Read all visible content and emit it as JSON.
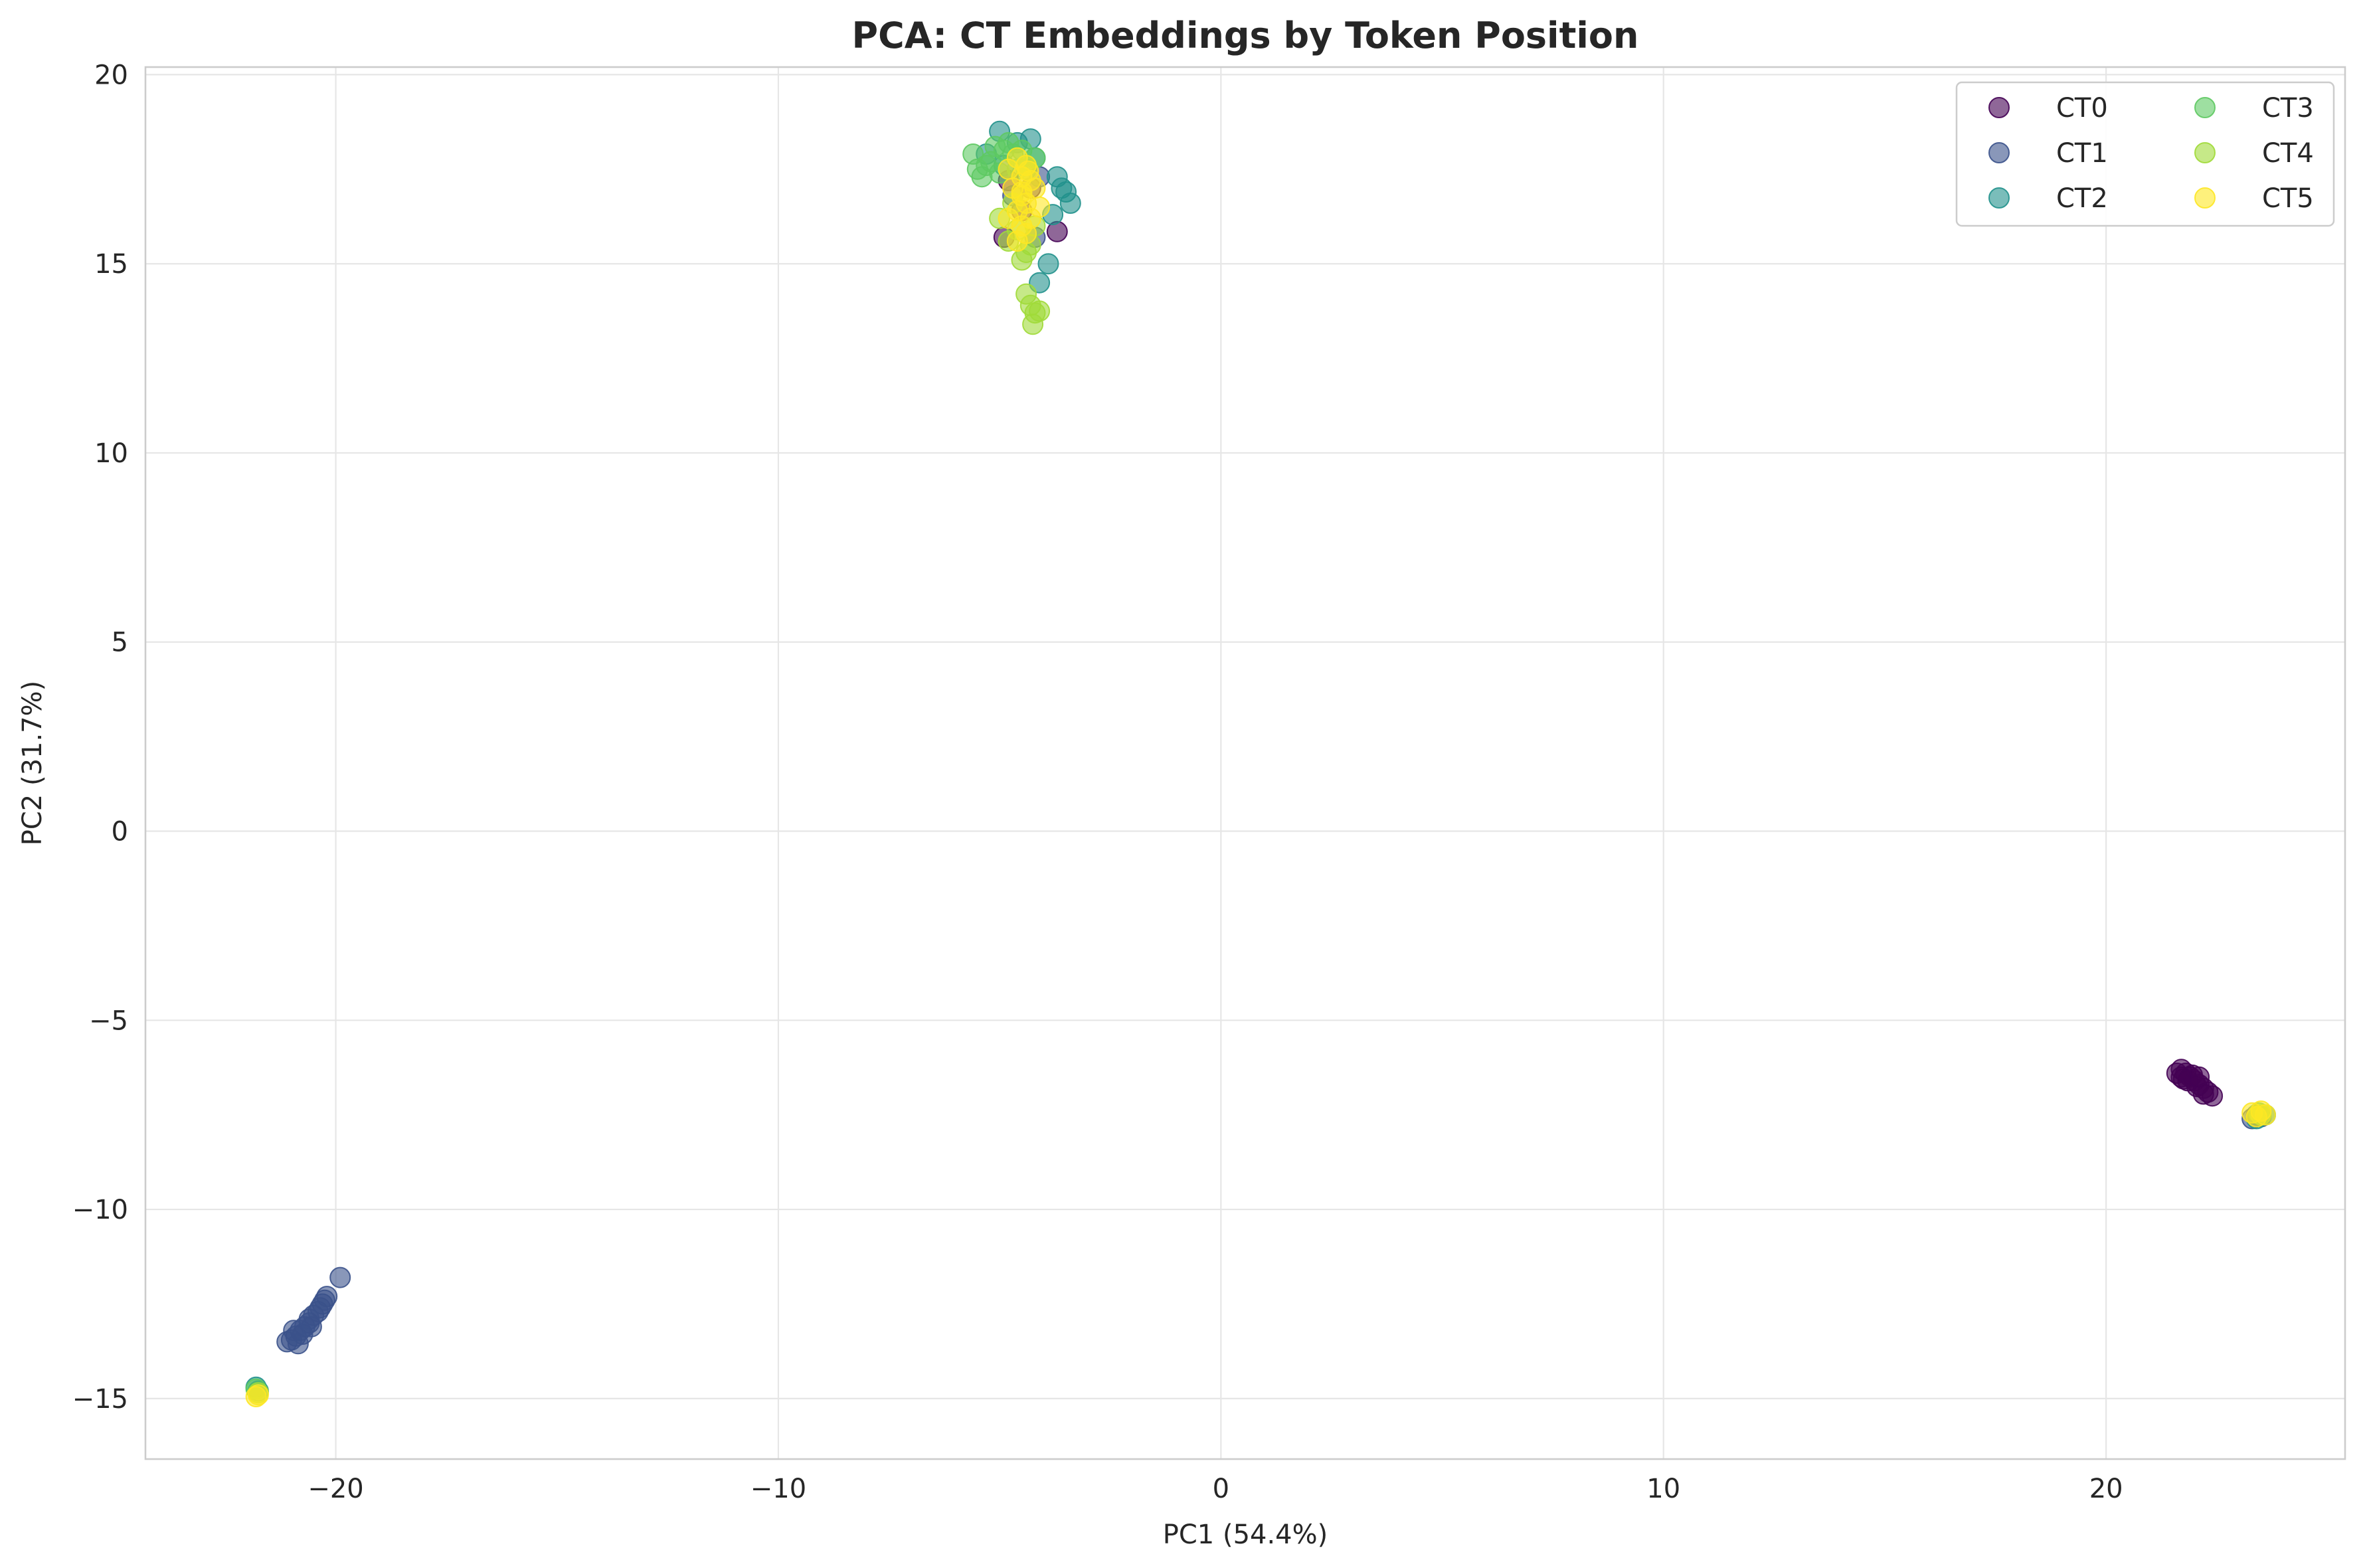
{
  "chart_data": {
    "type": "scatter",
    "title": "PCA: CT Embeddings by Token Position",
    "xlabel": "PC1 (54.4%)",
    "ylabel": "PC2 (31.7%)",
    "xlim": [
      -24.3,
      25.4
    ],
    "ylim": [
      -16.6,
      20.2
    ],
    "xticks": [
      -20,
      -10,
      0,
      10,
      20
    ],
    "yticks": [
      -15,
      -10,
      -5,
      0,
      5,
      10,
      15,
      20
    ],
    "xtick_labels": [
      "−20",
      "−10",
      "0",
      "10",
      "20"
    ],
    "ytick_labels": [
      "−15",
      "−10",
      "−5",
      "0",
      "5",
      "10",
      "15",
      "20"
    ],
    "grid": true,
    "legend": {
      "placement": "top-right",
      "columns": 2
    },
    "series": [
      {
        "name": "CT0",
        "color": "#440154",
        "points": [
          [
            21.7,
            -6.3
          ],
          [
            21.8,
            -6.4
          ],
          [
            21.9,
            -6.5
          ],
          [
            22.0,
            -6.6
          ],
          [
            22.1,
            -6.7
          ],
          [
            22.2,
            -6.8
          ],
          [
            22.3,
            -6.9
          ],
          [
            22.4,
            -7.0
          ],
          [
            21.6,
            -6.4
          ],
          [
            21.75,
            -6.55
          ],
          [
            21.95,
            -6.45
          ],
          [
            22.05,
            -6.75
          ],
          [
            22.2,
            -6.95
          ],
          [
            21.85,
            -6.6
          ],
          [
            22.1,
            -6.5
          ],
          [
            21.7,
            -6.5
          ],
          [
            -4.9,
            15.7
          ],
          [
            -3.7,
            15.85
          ],
          [
            -4.5,
            16.4
          ],
          [
            -4.8,
            17.2
          ],
          [
            -4.3,
            17.0
          ]
        ]
      },
      {
        "name": "CT1",
        "color": "#3b528b",
        "points": [
          [
            -19.9,
            -11.8
          ],
          [
            -20.2,
            -12.3
          ],
          [
            -20.3,
            -12.5
          ],
          [
            -20.4,
            -12.7
          ],
          [
            -20.5,
            -12.8
          ],
          [
            -20.6,
            -13.0
          ],
          [
            -20.7,
            -13.1
          ],
          [
            -20.8,
            -13.2
          ],
          [
            -20.9,
            -13.35
          ],
          [
            -21.0,
            -13.45
          ],
          [
            -21.1,
            -13.5
          ],
          [
            -20.85,
            -13.55
          ],
          [
            -20.75,
            -13.3
          ],
          [
            -20.55,
            -13.1
          ],
          [
            -20.35,
            -12.6
          ],
          [
            -20.25,
            -12.4
          ],
          [
            -20.6,
            -12.9
          ],
          [
            -20.95,
            -13.2
          ],
          [
            23.3,
            -7.6
          ],
          [
            23.5,
            -7.55
          ],
          [
            23.4,
            -7.5
          ],
          [
            -4.2,
            15.7
          ],
          [
            -4.7,
            16.8
          ],
          [
            -4.1,
            17.3
          ]
        ]
      },
      {
        "name": "CT2",
        "color": "#21918c",
        "points": [
          [
            -5.0,
            18.5
          ],
          [
            -4.3,
            18.3
          ],
          [
            -3.7,
            17.3
          ],
          [
            -3.5,
            16.9
          ],
          [
            -3.4,
            16.6
          ],
          [
            -3.9,
            15.0
          ],
          [
            -4.1,
            14.5
          ],
          [
            -5.3,
            17.9
          ],
          [
            -4.6,
            18.2
          ],
          [
            -4.2,
            17.8
          ],
          [
            -3.8,
            16.3
          ],
          [
            -4.9,
            17.6
          ],
          [
            -3.6,
            17.0
          ],
          [
            -4.4,
            17.5
          ],
          [
            -21.8,
            -14.7
          ],
          [
            -21.75,
            -14.8
          ],
          [
            23.4,
            -7.6
          ],
          [
            23.6,
            -7.5
          ]
        ]
      },
      {
        "name": "CT3",
        "color": "#5ec962",
        "points": [
          [
            -5.6,
            17.9
          ],
          [
            -5.3,
            17.6
          ],
          [
            -5.1,
            18.1
          ],
          [
            -4.8,
            18.2
          ],
          [
            -4.5,
            18.0
          ],
          [
            -4.2,
            17.8
          ],
          [
            -5.4,
            17.3
          ],
          [
            -5.0,
            17.4
          ],
          [
            -4.7,
            17.9
          ],
          [
            -4.4,
            17.6
          ],
          [
            -5.2,
            17.7
          ],
          [
            -4.9,
            18.0
          ],
          [
            -4.6,
            17.5
          ],
          [
            -5.5,
            17.5
          ],
          [
            -21.8,
            -14.75
          ],
          [
            23.45,
            -7.45
          ]
        ]
      },
      {
        "name": "CT4",
        "color": "#a0da39",
        "points": [
          [
            -4.5,
            15.1
          ],
          [
            -4.4,
            15.3
          ],
          [
            -4.8,
            15.6
          ],
          [
            -4.6,
            15.9
          ],
          [
            -5.0,
            16.2
          ],
          [
            -4.3,
            15.5
          ],
          [
            -4.7,
            16.6
          ],
          [
            -4.2,
            16.0
          ],
          [
            -4.4,
            14.2
          ],
          [
            -4.3,
            13.9
          ],
          [
            -4.2,
            13.7
          ],
          [
            -4.25,
            13.4
          ],
          [
            -4.1,
            13.75
          ],
          [
            -21.75,
            -14.85
          ],
          [
            23.5,
            -7.5
          ]
        ]
      },
      {
        "name": "CT5",
        "color": "#fde725",
        "points": [
          [
            -4.6,
            17.8
          ],
          [
            -4.4,
            17.6
          ],
          [
            -4.8,
            17.5
          ],
          [
            -4.5,
            17.3
          ],
          [
            -4.3,
            17.2
          ],
          [
            -4.7,
            17.0
          ],
          [
            -4.5,
            16.8
          ],
          [
            -4.4,
            16.6
          ],
          [
            -4.6,
            16.4
          ],
          [
            -4.3,
            16.2
          ],
          [
            -4.5,
            16.0
          ],
          [
            -4.4,
            15.8
          ],
          [
            -4.6,
            15.6
          ],
          [
            -4.2,
            17.0
          ],
          [
            -4.8,
            16.2
          ],
          [
            -4.1,
            16.5
          ],
          [
            -4.5,
            16.9
          ],
          [
            -4.35,
            17.45
          ],
          [
            -21.75,
            -14.9
          ],
          [
            -21.8,
            -14.95
          ],
          [
            23.3,
            -7.45
          ],
          [
            23.5,
            -7.4
          ],
          [
            23.6,
            -7.5
          ],
          [
            23.4,
            -7.55
          ]
        ]
      }
    ]
  }
}
